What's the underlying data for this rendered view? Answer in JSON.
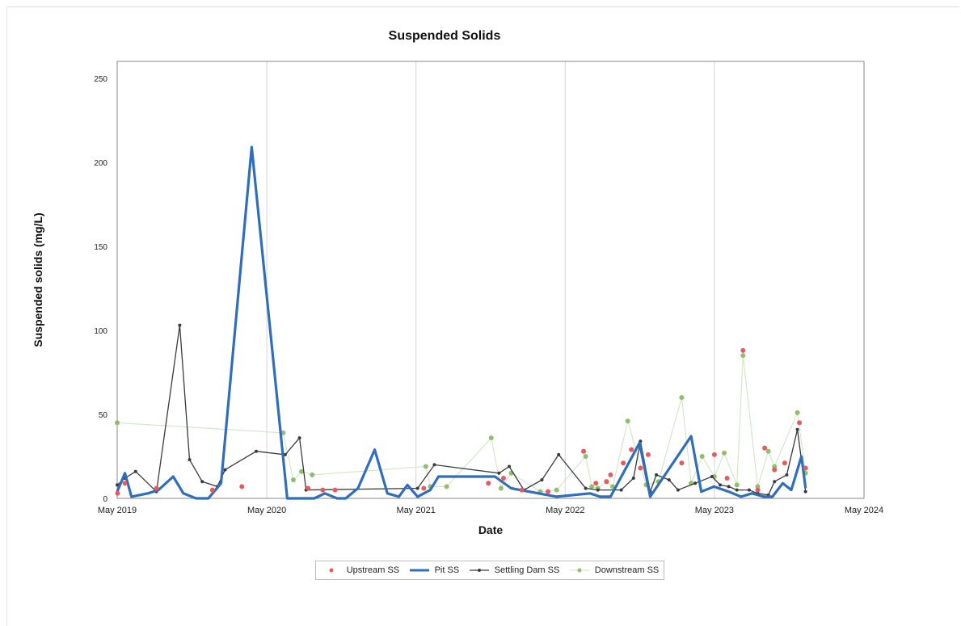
{
  "chart_data": {
    "type": "line",
    "title": "Suspended Solids",
    "xlabel": "Date",
    "ylabel": "Suspended solids  (mg/L)",
    "ylim": [
      0,
      260
    ],
    "yticks": [
      0,
      50,
      100,
      150,
      200,
      250
    ],
    "xlim": [
      "2019-05-01",
      "2024-05-01"
    ],
    "xticks": [
      {
        "date": "2019-05-01",
        "label": "May 2019"
      },
      {
        "date": "2020-05-01",
        "label": "May 2020"
      },
      {
        "date": "2021-05-01",
        "label": "May 2021"
      },
      {
        "date": "2022-05-01",
        "label": "May 2022"
      },
      {
        "date": "2023-05-01",
        "label": "May 2023"
      },
      {
        "date": "2024-05-01",
        "label": "May 2024"
      }
    ],
    "grid": "vertical",
    "legend": "bottom",
    "series": [
      {
        "name": "Upstream SS",
        "style": "scatter",
        "color": "#e8595c",
        "points": [
          [
            "2019-05-02",
            3
          ],
          [
            "2019-05-20",
            9
          ],
          [
            "2019-08-05",
            6
          ],
          [
            "2019-12-20",
            5
          ],
          [
            "2020-03-01",
            7
          ],
          [
            "2020-08-10",
            6
          ],
          [
            "2020-09-15",
            5
          ],
          [
            "2020-10-15",
            5
          ],
          [
            "2021-05-20",
            6
          ],
          [
            "2021-10-25",
            9
          ],
          [
            "2021-12-01",
            12
          ],
          [
            "2022-01-15",
            5
          ],
          [
            "2022-03-20",
            4
          ],
          [
            "2022-06-15",
            28
          ],
          [
            "2022-07-15",
            9
          ],
          [
            "2022-08-10",
            10
          ],
          [
            "2022-08-20",
            14
          ],
          [
            "2022-09-20",
            21
          ],
          [
            "2022-10-10",
            29
          ],
          [
            "2022-11-01",
            18
          ],
          [
            "2022-11-20",
            26
          ],
          [
            "2023-02-10",
            21
          ],
          [
            "2023-05-01",
            26
          ],
          [
            "2023-06-01",
            12
          ],
          [
            "2023-07-10",
            88
          ],
          [
            "2023-08-15",
            5
          ],
          [
            "2023-09-01",
            30
          ],
          [
            "2023-09-25",
            17
          ],
          [
            "2023-10-20",
            21
          ],
          [
            "2023-11-25",
            45
          ],
          [
            "2023-12-10",
            18
          ]
        ]
      },
      {
        "name": "Pit SS",
        "style": "line",
        "color": "#2f6ebc",
        "points": [
          [
            "2019-05-01",
            4
          ],
          [
            "2019-05-20",
            15
          ],
          [
            "2019-06-05",
            1
          ],
          [
            "2019-07-15",
            3
          ],
          [
            "2019-08-10",
            5
          ],
          [
            "2019-09-15",
            13
          ],
          [
            "2019-10-10",
            3
          ],
          [
            "2019-11-10",
            0
          ],
          [
            "2019-12-10",
            0
          ],
          [
            "2020-01-10",
            9
          ],
          [
            "2020-03-25",
            209
          ],
          [
            "2020-06-20",
            0
          ],
          [
            "2020-07-10",
            0
          ],
          [
            "2020-08-10",
            0
          ],
          [
            "2020-08-25",
            0
          ],
          [
            "2020-09-20",
            3
          ],
          [
            "2020-10-20",
            0
          ],
          [
            "2020-11-10",
            0
          ],
          [
            "2020-12-10",
            6
          ],
          [
            "2021-01-20",
            29
          ],
          [
            "2021-02-20",
            3
          ],
          [
            "2021-03-20",
            1
          ],
          [
            "2021-04-10",
            8
          ],
          [
            "2021-05-05",
            1
          ],
          [
            "2021-06-05",
            5
          ],
          [
            "2021-06-25",
            13
          ],
          [
            "2021-11-10",
            13
          ],
          [
            "2021-12-20",
            6
          ],
          [
            "2022-04-10",
            1
          ],
          [
            "2022-07-01",
            3
          ],
          [
            "2022-07-25",
            1
          ],
          [
            "2022-08-20",
            1
          ],
          [
            "2022-10-30",
            33
          ],
          [
            "2022-11-25",
            1
          ],
          [
            "2023-03-05",
            37
          ],
          [
            "2023-03-30",
            4
          ],
          [
            "2023-04-30",
            7
          ],
          [
            "2023-06-05",
            4
          ],
          [
            "2023-07-05",
            1
          ],
          [
            "2023-08-01",
            3
          ],
          [
            "2023-08-30",
            1
          ],
          [
            "2023-09-20",
            1
          ],
          [
            "2023-10-15",
            9
          ],
          [
            "2023-11-05",
            5
          ],
          [
            "2023-11-30",
            25
          ],
          [
            "2023-12-10",
            6
          ]
        ]
      },
      {
        "name": "Settling Dam SS",
        "style": "line-marker",
        "color": "#3a3a3a",
        "points": [
          [
            "2019-05-01",
            8
          ],
          [
            "2019-05-20",
            12
          ],
          [
            "2019-06-15",
            16
          ],
          [
            "2019-08-05",
            4
          ],
          [
            "2019-10-01",
            103
          ],
          [
            "2019-10-25",
            23
          ],
          [
            "2019-11-25",
            10
          ],
          [
            "2020-01-01",
            7
          ],
          [
            "2020-01-20",
            17
          ],
          [
            "2020-04-05",
            28
          ],
          [
            "2020-06-15",
            26
          ],
          [
            "2020-07-20",
            36
          ],
          [
            "2020-08-05",
            5
          ],
          [
            "2021-05-05",
            6
          ],
          [
            "2021-06-15",
            20
          ],
          [
            "2021-11-20",
            15
          ],
          [
            "2021-12-15",
            19
          ],
          [
            "2022-01-20",
            5
          ],
          [
            "2022-03-05",
            11
          ],
          [
            "2022-04-15",
            26
          ],
          [
            "2022-06-20",
            6
          ],
          [
            "2022-07-20",
            5
          ],
          [
            "2022-09-15",
            5
          ],
          [
            "2022-10-15",
            12
          ],
          [
            "2022-11-01",
            34
          ],
          [
            "2022-11-25",
            4
          ],
          [
            "2022-12-10",
            14
          ],
          [
            "2023-01-10",
            11
          ],
          [
            "2023-02-01",
            5
          ],
          [
            "2023-03-15",
            9
          ],
          [
            "2023-04-25",
            13
          ],
          [
            "2023-05-15",
            8
          ],
          [
            "2023-06-05",
            7
          ],
          [
            "2023-06-25",
            5
          ],
          [
            "2023-07-25",
            5
          ],
          [
            "2023-08-15",
            3
          ],
          [
            "2023-09-10",
            2
          ],
          [
            "2023-09-25",
            10
          ],
          [
            "2023-10-25",
            14
          ],
          [
            "2023-11-20",
            41
          ],
          [
            "2023-12-10",
            4
          ]
        ]
      },
      {
        "name": "Downstream SS",
        "style": "line-marker-faint",
        "color": "#8fbf6a",
        "points": [
          [
            "2019-05-01",
            45
          ],
          [
            "2020-06-10",
            39
          ],
          [
            "2020-07-05",
            11
          ],
          [
            "2020-07-25",
            16
          ],
          [
            "2020-08-20",
            14
          ],
          [
            "2021-05-25",
            19
          ],
          [
            "2021-06-05",
            7
          ],
          [
            "2021-07-15",
            7
          ],
          [
            "2021-11-01",
            36
          ],
          [
            "2021-11-25",
            6
          ],
          [
            "2021-12-20",
            15
          ],
          [
            "2022-03-01",
            4
          ],
          [
            "2022-04-10",
            5
          ],
          [
            "2022-06-20",
            25
          ],
          [
            "2022-07-05",
            7
          ],
          [
            "2022-07-20",
            6
          ],
          [
            "2022-08-10",
            10
          ],
          [
            "2022-08-25",
            7
          ],
          [
            "2022-10-01",
            46
          ],
          [
            "2022-11-15",
            8
          ],
          [
            "2022-12-15",
            10
          ],
          [
            "2023-02-10",
            60
          ],
          [
            "2023-03-05",
            9
          ],
          [
            "2023-04-01",
            25
          ],
          [
            "2023-05-01",
            13
          ],
          [
            "2023-05-25",
            27
          ],
          [
            "2023-06-25",
            8
          ],
          [
            "2023-07-10",
            85
          ],
          [
            "2023-08-15",
            7
          ],
          [
            "2023-09-10",
            28
          ],
          [
            "2023-09-25",
            19
          ],
          [
            "2023-11-20",
            51
          ],
          [
            "2023-12-10",
            15
          ]
        ]
      }
    ]
  }
}
